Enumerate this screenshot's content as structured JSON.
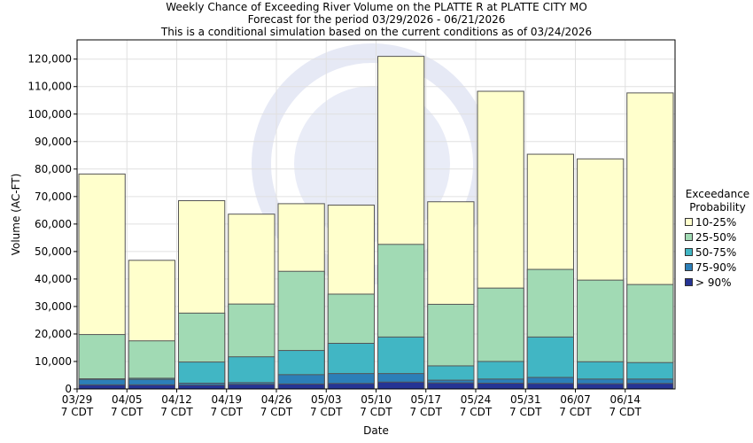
{
  "title_lines": [
    "Weekly Chance of Exceeding River Volume on the PLATTE R at PLATTE CITY MO",
    "Forecast for the period 03/29/2026 - 06/21/2026",
    "This is a conditional simulation based on the current conditions as of 03/24/2026"
  ],
  "chart_data": {
    "type": "bar",
    "stacked": true,
    "xlabel": "Date",
    "ylabel": "Volume (AC-FT)",
    "ylim": [
      0,
      127000
    ],
    "y_ticks": [
      0,
      10000,
      20000,
      30000,
      40000,
      50000,
      60000,
      70000,
      80000,
      90000,
      100000,
      110000,
      120000
    ],
    "y_tick_labels": [
      "0",
      "10,000",
      "20,000",
      "30,000",
      "40,000",
      "50,000",
      "60,000",
      "70,000",
      "80,000",
      "90,000",
      "100,000",
      "110,000",
      "120,000"
    ],
    "x_tick_labels": [
      {
        "date": "03/29",
        "tz": "7 CDT"
      },
      {
        "date": "04/05",
        "tz": "7 CDT"
      },
      {
        "date": "04/12",
        "tz": "7 CDT"
      },
      {
        "date": "04/19",
        "tz": "7 CDT"
      },
      {
        "date": "04/26",
        "tz": "7 CDT"
      },
      {
        "date": "05/03",
        "tz": "7 CDT"
      },
      {
        "date": "05/10",
        "tz": "7 CDT"
      },
      {
        "date": "05/17",
        "tz": "7 CDT"
      },
      {
        "date": "05/24",
        "tz": "7 CDT"
      },
      {
        "date": "05/31",
        "tz": "7 CDT"
      },
      {
        "date": "06/07",
        "tz": "7 CDT"
      },
      {
        "date": "06/14",
        "tz": "7 CDT"
      }
    ],
    "legend": {
      "title_lines": [
        "Exceedance",
        "Probability"
      ],
      "placement": "right",
      "entries": [
        {
          "label": "10-25%",
          "color": "#ffffcc"
        },
        {
          "label": "25-50%",
          "color": "#a1dab4"
        },
        {
          "label": "50-75%",
          "color": "#41b6c4"
        },
        {
          "label": "75-90%",
          "color": "#2c7fb8"
        },
        {
          "label": "> 90%",
          "color": "#253494"
        }
      ]
    },
    "bars": [
      {
        "week": "03/29",
        "gt90": 1500,
        "p75_90": 3500,
        "p50_75": 3700,
        "p25_50": 19800,
        "p10_25": 78200
      },
      {
        "week": "04/05",
        "gt90": 1500,
        "p75_90": 3500,
        "p50_75": 3900,
        "p25_50": 17500,
        "p10_25": 46800
      },
      {
        "week": "04/12",
        "gt90": 1400,
        "p75_90": 2100,
        "p50_75": 9800,
        "p25_50": 27600,
        "p10_25": 68500
      },
      {
        "week": "04/19",
        "gt90": 1700,
        "p75_90": 2300,
        "p50_75": 11700,
        "p25_50": 30900,
        "p10_25": 63600
      },
      {
        "week": "04/26",
        "gt90": 1800,
        "p75_90": 5200,
        "p50_75": 14000,
        "p25_50": 42800,
        "p10_25": 67400
      },
      {
        "week": "05/03",
        "gt90": 2000,
        "p75_90": 5600,
        "p50_75": 16600,
        "p25_50": 34500,
        "p10_25": 66900
      },
      {
        "week": "05/10",
        "gt90": 2500,
        "p75_90": 5600,
        "p50_75": 18900,
        "p25_50": 52600,
        "p10_25": 121000
      },
      {
        "week": "05/17",
        "gt90": 2200,
        "p75_90": 3200,
        "p50_75": 8400,
        "p25_50": 30800,
        "p10_25": 68100
      },
      {
        "week": "05/24",
        "gt90": 2100,
        "p75_90": 3600,
        "p50_75": 10000,
        "p25_50": 36700,
        "p10_25": 108300
      },
      {
        "week": "05/31",
        "gt90": 2000,
        "p75_90": 4200,
        "p50_75": 18900,
        "p25_50": 43500,
        "p10_25": 85400
      },
      {
        "week": "06/07",
        "gt90": 1900,
        "p75_90": 3600,
        "p50_75": 9900,
        "p25_50": 39600,
        "p10_25": 83700
      },
      {
        "week": "06/14",
        "gt90": 2000,
        "p75_90": 3600,
        "p50_75": 9600,
        "p25_50": 38000,
        "p10_25": 107700
      }
    ]
  }
}
